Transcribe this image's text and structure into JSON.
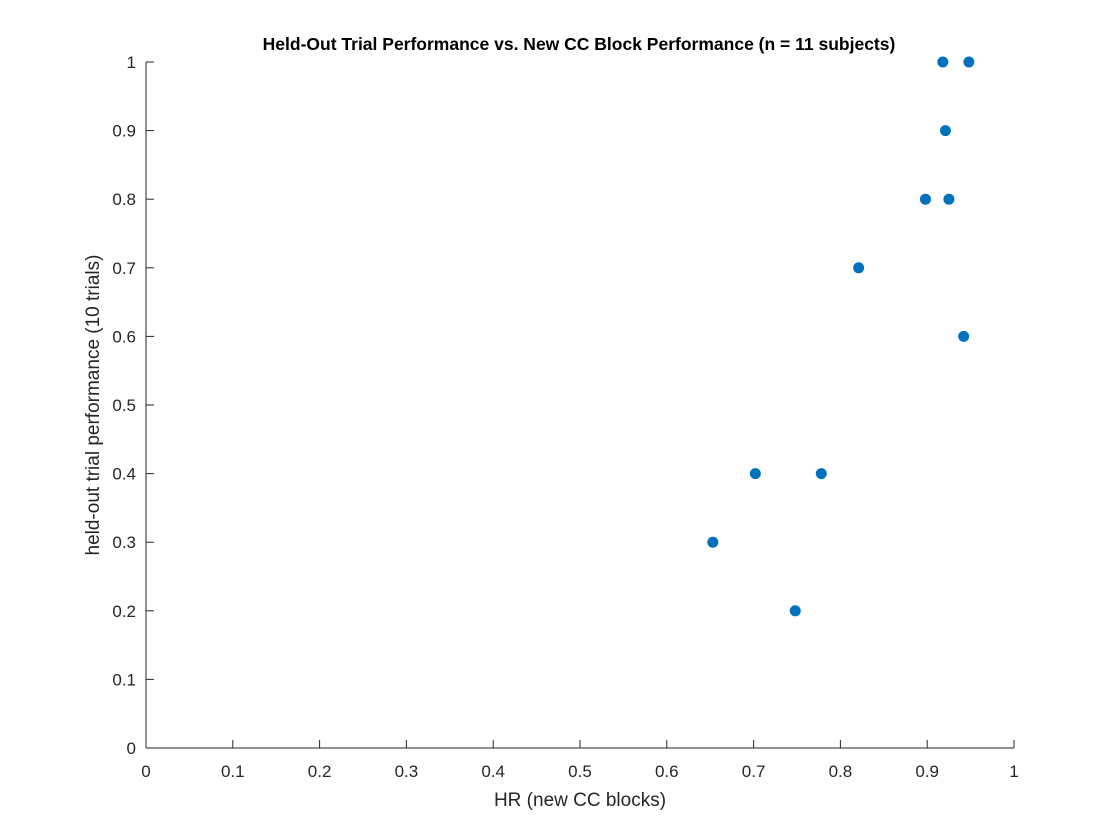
{
  "chart_data": {
    "type": "scatter",
    "title": "Held-Out Trial Performance vs. New CC Block Performance (n = 11 subjects)",
    "xlabel": "HR (new CC blocks)",
    "ylabel": "held-out trial performance (10 trials)",
    "xlim": [
      0,
      1
    ],
    "ylim": [
      0,
      1
    ],
    "xticks": [
      "0",
      "0.1",
      "0.2",
      "0.3",
      "0.4",
      "0.5",
      "0.6",
      "0.7",
      "0.8",
      "0.9",
      "1"
    ],
    "yticks": [
      "0",
      "0.1",
      "0.2",
      "0.3",
      "0.4",
      "0.5",
      "0.6",
      "0.7",
      "0.8",
      "0.9",
      "1"
    ],
    "grid": false,
    "marker_color": "#0072BD",
    "axis_color": "#262626",
    "points": [
      {
        "x": 0.653,
        "y": 0.3
      },
      {
        "x": 0.702,
        "y": 0.4
      },
      {
        "x": 0.748,
        "y": 0.2
      },
      {
        "x": 0.778,
        "y": 0.4
      },
      {
        "x": 0.821,
        "y": 0.7
      },
      {
        "x": 0.898,
        "y": 0.8
      },
      {
        "x": 0.918,
        "y": 1.0
      },
      {
        "x": 0.921,
        "y": 0.9
      },
      {
        "x": 0.925,
        "y": 0.8
      },
      {
        "x": 0.942,
        "y": 0.6
      },
      {
        "x": 0.948,
        "y": 1.0
      }
    ]
  }
}
